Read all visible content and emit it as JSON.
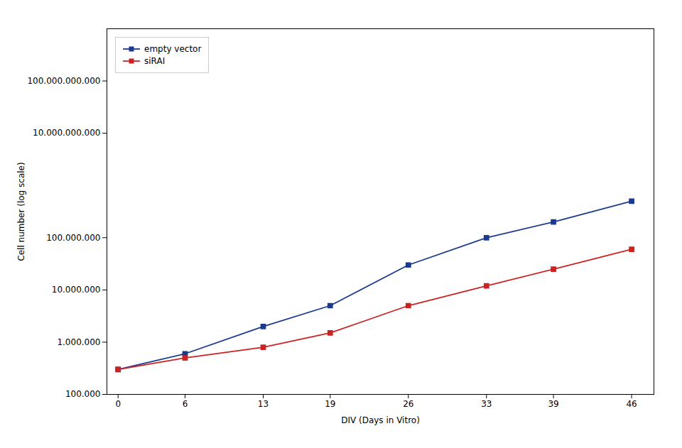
{
  "chart_data": {
    "type": "line",
    "xlabel": "DIV (Days in Vitro)",
    "ylabel": "Cell number (log scale)",
    "x": [
      0,
      6,
      13,
      19,
      26,
      33,
      39,
      46
    ],
    "series": [
      {
        "name": "empty vector",
        "color": "#1a3a8f",
        "marker": "square",
        "values": [
          300000,
          600000,
          2000000,
          5000000,
          30000000,
          100000000,
          200000000,
          500000000
        ]
      },
      {
        "name": "siRAI",
        "color": "#cc2222",
        "marker": "square",
        "values": [
          300000,
          500000,
          800000,
          1500000,
          5000000,
          12000000,
          25000000,
          60000000
        ]
      }
    ],
    "xlim": [
      -1,
      48
    ],
    "xticks": [
      0,
      6,
      13,
      19,
      26,
      33,
      39,
      46
    ],
    "ylim": [
      100000,
      1000000000000
    ],
    "yticks": [
      {
        "value": 100000,
        "label": "100.000"
      },
      {
        "value": 1000000,
        "label": "1.000.000"
      },
      {
        "value": 10000000,
        "label": "10.000.000"
      },
      {
        "value": 100000000,
        "label": "100.000.000"
      },
      {
        "value": 10000000000,
        "label": "10.000.000.000"
      },
      {
        "value": 100000000000,
        "label": "100.000.000.000"
      }
    ],
    "log": "y",
    "grid": false,
    "legend": "upper left"
  }
}
